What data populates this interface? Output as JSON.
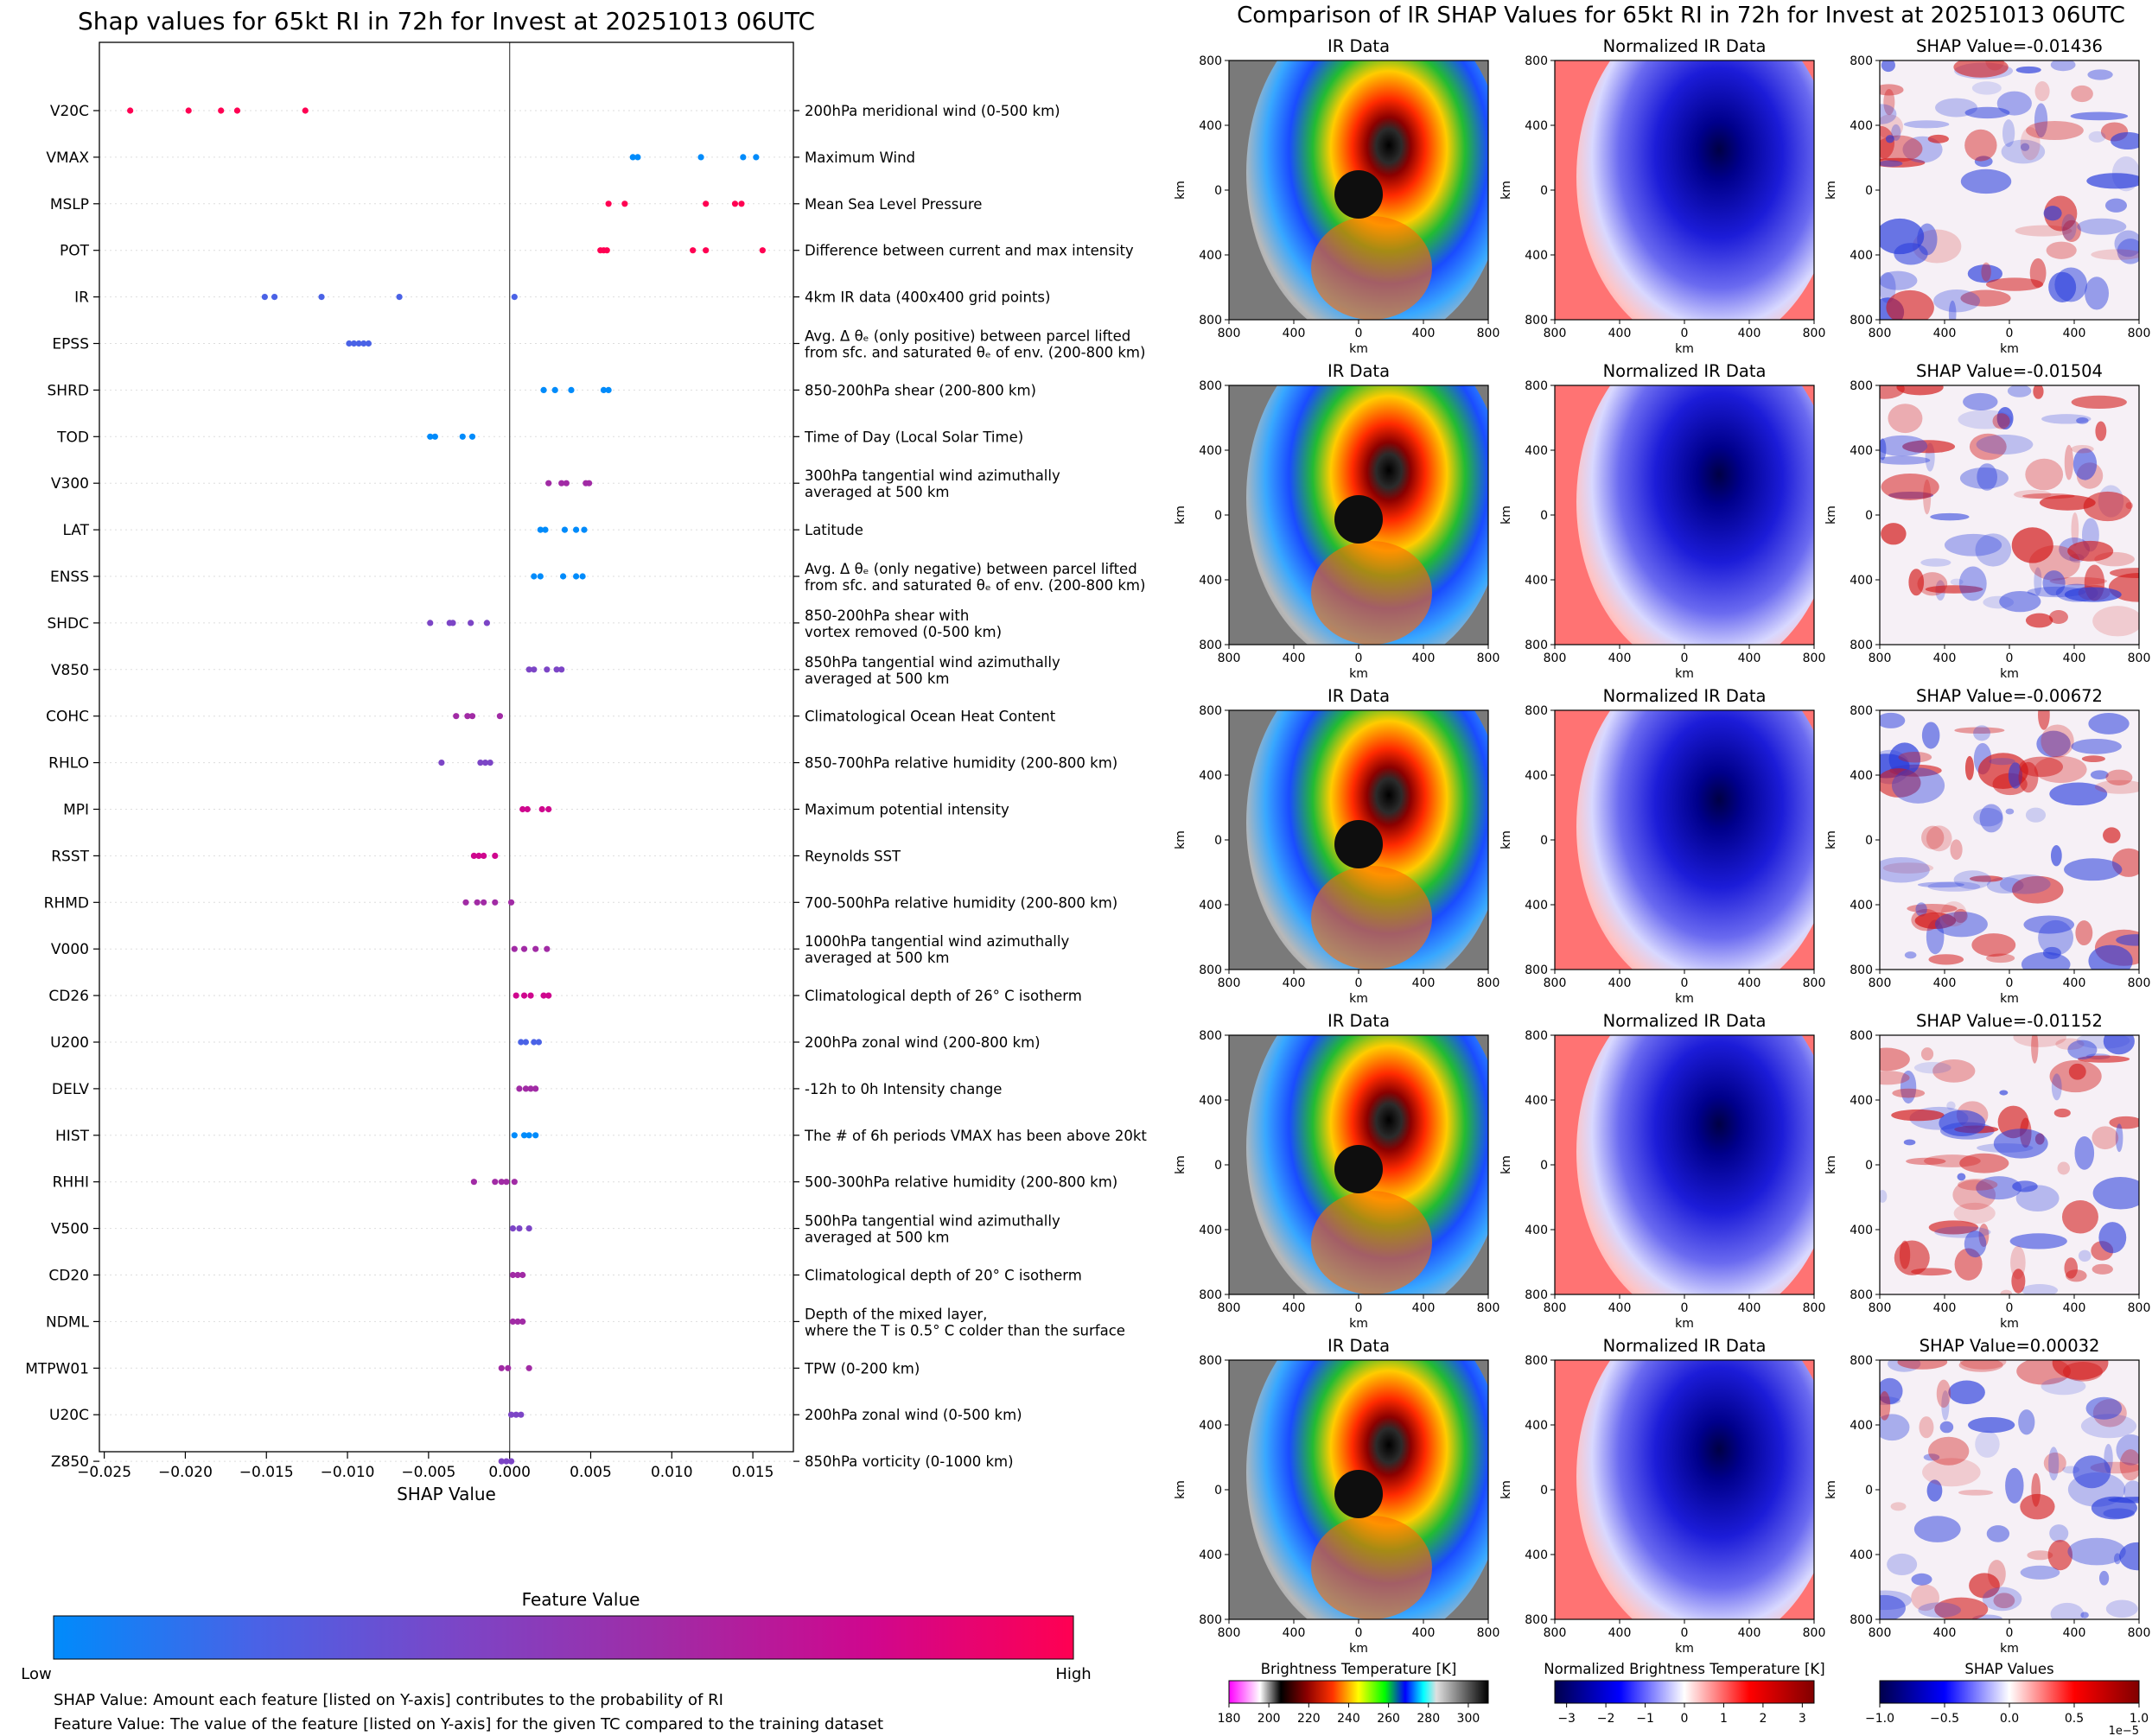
{
  "chart_data": [
    {
      "type": "scatter",
      "title": "Shap values for 65kt RI in 72h for Invest at 20251013 06UTC",
      "xlabel": "SHAP Value",
      "ylabel": "",
      "xlim": [
        -0.0253,
        0.0175
      ],
      "xticks": [
        -0.025,
        -0.02,
        -0.015,
        -0.01,
        -0.005,
        0.0,
        0.005,
        0.01,
        0.015
      ],
      "xtick_labels": [
        "−0.025",
        "−0.020",
        "−0.015",
        "−0.010",
        "−0.005",
        "0.000",
        "0.005",
        "0.010",
        "0.015"
      ],
      "colorbar": {
        "title": "Feature Value",
        "low_label": "Low",
        "high_label": "High",
        "colors": [
          "#008bfb",
          "#4a62e6",
          "#7c45c6",
          "#a12ba5",
          "#cf078e",
          "#ff0052"
        ]
      },
      "notes": [
        "SHAP Value: Amount each feature [listed on Y-axis] contributes to the probability of RI",
        "Feature Value: The value of the feature [listed on Y-axis] for the given TC compared to the training dataset"
      ],
      "features": [
        {
          "name": "V20C",
          "desc": [
            "200hPa meridional wind (0-500 km)"
          ],
          "values": [
            -0.0234,
            -0.0198,
            -0.0178,
            -0.0168,
            -0.0126
          ],
          "color": "#ff0052"
        },
        {
          "name": "VMAX",
          "desc": [
            "Maximum Wind"
          ],
          "values": [
            0.0076,
            0.0079,
            0.0118,
            0.0144,
            0.0152
          ],
          "color": "#008bfb"
        },
        {
          "name": "MSLP",
          "desc": [
            "Mean Sea Level Pressure"
          ],
          "values": [
            0.0061,
            0.0071,
            0.0121,
            0.0139,
            0.0143
          ],
          "color": "#ff0052"
        },
        {
          "name": "POT",
          "desc": [
            "Difference between current and max intensity"
          ],
          "values": [
            0.0056,
            0.0058,
            0.006,
            0.0113,
            0.0121,
            0.0156
          ],
          "color": "#ff0052"
        },
        {
          "name": "IR",
          "desc": [
            "4km IR data (400x400 grid points)"
          ],
          "values": [
            -0.0151,
            -0.0145,
            -0.0116,
            -0.0068,
            0.0003
          ],
          "color": "#4a62e6"
        },
        {
          "name": "EPSS",
          "desc": [
            "Avg. Δ θₑ (only positive) between parcel lifted",
            "from sfc. and saturated θₑ of env. (200-800 km)"
          ],
          "values": [
            -0.0099,
            -0.0096,
            -0.0093,
            -0.009,
            -0.0087
          ],
          "color": "#4a62e6"
        },
        {
          "name": "SHRD",
          "desc": [
            "850-200hPa shear (200-800 km)"
          ],
          "values": [
            0.0021,
            0.0028,
            0.0038,
            0.0058,
            0.0061
          ],
          "color": "#008bfb"
        },
        {
          "name": "TOD",
          "desc": [
            "Time of Day (Local Solar Time)"
          ],
          "values": [
            -0.0049,
            -0.0046,
            -0.0029,
            -0.0023
          ],
          "color": "#008bfb"
        },
        {
          "name": "V300",
          "desc": [
            "300hPa tangential wind azimuthally",
            "averaged at 500 km"
          ],
          "values": [
            0.0024,
            0.0032,
            0.0035,
            0.0047,
            0.0049
          ],
          "color": "#a12ba5"
        },
        {
          "name": "LAT",
          "desc": [
            "Latitude"
          ],
          "values": [
            0.0019,
            0.0022,
            0.0034,
            0.0041,
            0.0046
          ],
          "color": "#008bfb"
        },
        {
          "name": "ENSS",
          "desc": [
            "Avg. Δ θₑ (only negative) between parcel lifted",
            "from sfc. and saturated θₑ of env. (200-800 km)"
          ],
          "values": [
            0.0015,
            0.0019,
            0.0033,
            0.0041,
            0.0045
          ],
          "color": "#008bfb"
        },
        {
          "name": "SHDC",
          "desc": [
            "850-200hPa shear with",
            "vortex removed (0-500 km)"
          ],
          "values": [
            -0.0049,
            -0.0037,
            -0.0035,
            -0.0024,
            -0.0014
          ],
          "color": "#7c45c6"
        },
        {
          "name": "V850",
          "desc": [
            "850hPa tangential wind azimuthally",
            "averaged at 500 km"
          ],
          "values": [
            0.0012,
            0.0015,
            0.0023,
            0.0029,
            0.0032
          ],
          "color": "#7c45c6"
        },
        {
          "name": "COHC",
          "desc": [
            "Climatological Ocean Heat Content"
          ],
          "values": [
            -0.0033,
            -0.0026,
            -0.0023,
            -0.0006
          ],
          "color": "#a12ba5"
        },
        {
          "name": "RHLO",
          "desc": [
            "850-700hPa relative humidity (200-800 km)"
          ],
          "values": [
            -0.0042,
            -0.0018,
            -0.0015,
            -0.0012
          ],
          "color": "#7c45c6"
        },
        {
          "name": "MPI",
          "desc": [
            "Maximum potential intensity"
          ],
          "values": [
            0.0008,
            0.0011,
            0.002,
            0.0024
          ],
          "color": "#cf078e"
        },
        {
          "name": "RSST",
          "desc": [
            "Reynolds SST"
          ],
          "values": [
            -0.0022,
            -0.0019,
            -0.0016,
            -0.0009
          ],
          "color": "#cf078e"
        },
        {
          "name": "RHMD",
          "desc": [
            "700-500hPa relative humidity (200-800 km)"
          ],
          "values": [
            -0.0027,
            -0.002,
            -0.0016,
            -0.0009,
            0.0001
          ],
          "color": "#a12ba5"
        },
        {
          "name": "V000",
          "desc": [
            "1000hPa tangential wind azimuthally",
            "averaged at 500 km"
          ],
          "values": [
            0.0003,
            0.0009,
            0.0016,
            0.0023
          ],
          "color": "#a12ba5"
        },
        {
          "name": "CD26",
          "desc": [
            "Climatological depth of 26° C isotherm"
          ],
          "values": [
            0.0004,
            0.0009,
            0.0013,
            0.0021,
            0.0024
          ],
          "color": "#cf078e"
        },
        {
          "name": "U200",
          "desc": [
            "200hPa zonal wind (200-800 km)"
          ],
          "values": [
            0.0007,
            0.001,
            0.0015,
            0.0018
          ],
          "color": "#4a62e6"
        },
        {
          "name": "DELV",
          "desc": [
            "-12h to 0h Intensity change"
          ],
          "values": [
            0.0006,
            0.001,
            0.0013,
            0.0016
          ],
          "color": "#a12ba5"
        },
        {
          "name": "HIST",
          "desc": [
            "The # of 6h periods VMAX has been above 20kt"
          ],
          "values": [
            0.0003,
            0.0009,
            0.0012,
            0.0016
          ],
          "color": "#008bfb"
        },
        {
          "name": "RHHI",
          "desc": [
            "500-300hPa relative humidity (200-800 km)"
          ],
          "values": [
            -0.0022,
            -0.0009,
            -0.0005,
            -0.0002,
            0.0003
          ],
          "color": "#a12ba5"
        },
        {
          "name": "V500",
          "desc": [
            "500hPa tangential wind azimuthally",
            "averaged at 500 km"
          ],
          "values": [
            0.0002,
            0.0006,
            0.0012
          ],
          "color": "#7c45c6"
        },
        {
          "name": "CD20",
          "desc": [
            "Climatological depth of 20° C isotherm"
          ],
          "values": [
            0.0002,
            0.0005,
            0.0008
          ],
          "color": "#a12ba5"
        },
        {
          "name": "NDML",
          "desc": [
            "Depth of the mixed layer,",
            "where the T is 0.5° C colder than the surface"
          ],
          "values": [
            0.0002,
            0.0005,
            0.0008
          ],
          "color": "#a12ba5"
        },
        {
          "name": "MTPW01",
          "desc": [
            "TPW (0-200 km)"
          ],
          "values": [
            -0.0005,
            -0.0001,
            0.0012
          ],
          "color": "#a12ba5"
        },
        {
          "name": "U20C",
          "desc": [
            "200hPa zonal wind (0-500 km)"
          ],
          "values": [
            0.0001,
            0.0004,
            0.0007
          ],
          "color": "#7c45c6"
        },
        {
          "name": "Z850",
          "desc": [
            "850hPa vorticity (0-1000 km)"
          ],
          "values": [
            -0.0005,
            -0.0002,
            0.0001
          ],
          "color": "#7c45c6"
        }
      ]
    },
    {
      "type": "heatmap",
      "title": "Comparison of IR SHAP Values for 65kt RI in 72h for Invest at 20251013 06UTC",
      "column_titles": [
        "IR Data",
        "Normalized IR Data"
      ],
      "shap_title_prefix": "SHAP Value=",
      "shap_values": [
        "-0.01436",
        "-0.01504",
        "-0.00672",
        "-0.01152",
        "0.00032"
      ],
      "xlabel": "km",
      "ylabel": "km",
      "tick_labels": [
        "800",
        "400",
        "0",
        "400",
        "800"
      ],
      "colorbars": [
        {
          "title": "Brightness Temperature [K]",
          "ticks": [
            "180",
            "200",
            "220",
            "240",
            "260",
            "280",
            "300"
          ],
          "range": [
            180,
            310
          ]
        },
        {
          "title": "Normalized Brightness Temperature [K]",
          "ticks": [
            "−3",
            "−2",
            "−1",
            "0",
            "1",
            "2",
            "3"
          ],
          "range": [
            -3.3,
            3.3
          ]
        },
        {
          "title": "SHAP Values",
          "ticks": [
            "−1.0",
            "−0.5",
            "0.0",
            "0.5",
            "1.0"
          ],
          "range": [
            -1.0,
            1.0
          ],
          "offset": "1e−5"
        }
      ]
    }
  ]
}
